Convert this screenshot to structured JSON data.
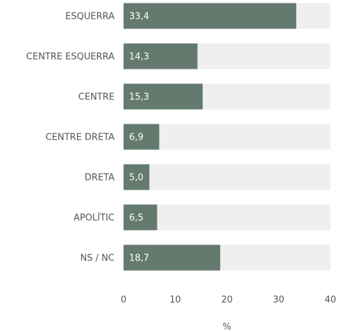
{
  "chart_data": {
    "type": "barh",
    "categories": [
      "ESQUERRA",
      "CENTRE ESQUERRA",
      "CENTRE",
      "CENTRE DRETA",
      "DRETA",
      "APOLÍTIC",
      "NS / NC"
    ],
    "values": [
      33.4,
      14.3,
      15.3,
      6.9,
      5.0,
      6.5,
      18.7
    ],
    "value_labels": [
      "33,4",
      "14,3",
      "15,3",
      "6,9",
      "5,0",
      "6,5",
      "18,7"
    ],
    "color": "#647a6f",
    "track_color": "#efefef",
    "xlim": [
      0,
      40
    ],
    "xticks": [
      0,
      10,
      20,
      30,
      40
    ],
    "x_label": "%"
  }
}
